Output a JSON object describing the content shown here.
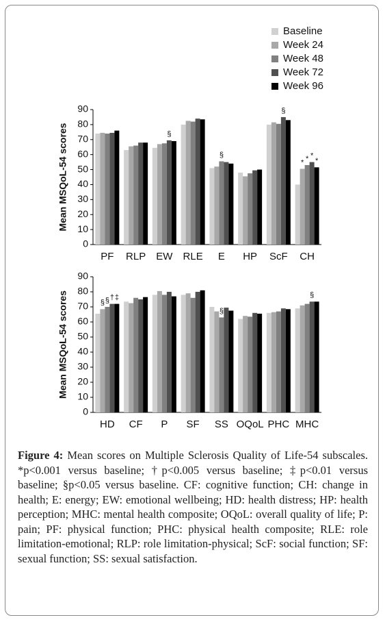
{
  "chart_data": [
    {
      "type": "bar",
      "ylabel": "Mean MSQoL-54 scores",
      "categories": [
        "PF",
        "RLP",
        "EW",
        "RLE",
        "E",
        "HP",
        "ScF",
        "CH"
      ],
      "series": [
        {
          "name": "Baseline",
          "color": "#d0d0d0",
          "values": [
            74,
            63,
            64.5,
            80,
            51,
            48,
            80,
            40
          ]
        },
        {
          "name": "Week 24",
          "color": "#a8a8a8",
          "values": [
            74.5,
            65.5,
            67,
            82.5,
            52,
            45.5,
            81.5,
            50.5
          ]
        },
        {
          "name": "Week 48",
          "color": "#808080",
          "values": [
            74,
            66,
            67.5,
            82,
            55.5,
            47.5,
            80.5,
            53
          ]
        },
        {
          "name": "Week 72",
          "color": "#505050",
          "values": [
            74.5,
            68,
            69.5,
            84,
            55,
            49.5,
            85,
            55
          ]
        },
        {
          "name": "Week 96",
          "color": "#000000",
          "values": [
            76,
            68,
            69,
            83.5,
            54,
            50,
            83,
            51.5
          ]
        }
      ],
      "annotations": [
        {
          "text": "§",
          "category": "EW",
          "series": "Week 72"
        },
        {
          "text": "§",
          "category": "E",
          "series": "Week 48"
        },
        {
          "text": "§",
          "category": "ScF",
          "series": "Week 72"
        },
        {
          "text": "*",
          "category": "CH",
          "series": "Week 24"
        },
        {
          "text": "*",
          "category": "CH",
          "series": "Week 48"
        },
        {
          "text": "*",
          "category": "CH",
          "series": "Week 72"
        },
        {
          "text": "*",
          "category": "CH",
          "series": "Week 96"
        }
      ],
      "ylim": [
        0,
        90
      ],
      "yticks": [
        0,
        10,
        20,
        30,
        40,
        50,
        60,
        70,
        80,
        90
      ],
      "legend": "upper right"
    },
    {
      "type": "bar",
      "ylabel": "Mean MSQoL-54 scores",
      "categories": [
        "HD",
        "CF",
        "P",
        "SF",
        "SS",
        "OQoL",
        "PHC",
        "MHC"
      ],
      "series": [
        {
          "color": "#d0d0d0",
          "values": [
            65.5,
            73.5,
            78,
            78,
            70,
            62,
            66,
            69
          ]
        },
        {
          "color": "#a8a8a8",
          "values": [
            68.5,
            72.5,
            80.5,
            79,
            67,
            64,
            66.5,
            71
          ]
        },
        {
          "color": "#808080",
          "values": [
            70,
            76,
            78,
            76,
            63,
            63.5,
            67,
            72
          ]
        },
        {
          "color": "#505050",
          "values": [
            72,
            75,
            80,
            80,
            69.5,
            66,
            69,
            73.5
          ]
        },
        {
          "color": "#000000",
          "values": [
            72,
            76.5,
            77,
            81,
            67.5,
            65.5,
            68.5,
            73.5
          ]
        }
      ],
      "annotations": [
        {
          "text": "§",
          "category": "HD",
          "series_index": 1
        },
        {
          "text": "§",
          "category": "HD",
          "series_index": 2
        },
        {
          "text": "†",
          "category": "HD",
          "series_index": 3
        },
        {
          "text": "‡",
          "category": "HD",
          "series_index": 4
        },
        {
          "text": "§",
          "category": "SS",
          "series_index": 2
        },
        {
          "text": "§",
          "category": "MHC",
          "series_index": 3
        }
      ],
      "ylim": [
        0,
        90
      ],
      "yticks": [
        0,
        10,
        20,
        30,
        40,
        50,
        60,
        70,
        80,
        90
      ]
    }
  ],
  "caption": {
    "label": "Figure 4:",
    "text": "Mean scores on Multiple Sclerosis Quality of Life-54 subscales. *p<0.001 versus baseline; †p<0.005 versus baseline; ‡p<0.01 versus baseline; §p<0.05 versus baseline. CF: cognitive function; CH: change in health; E: energy; EW: emotional wellbeing; HD: health distress; HP: health perception; MHC: mental health composite; OQoL: overall quality of life; P: pain; PF: physical function; PHC: physical health composite; RLE: role limitation-emotional; RLP: role limitation-physical; ScF: social function; SF: sexual function; SS: sexual satisfaction."
  }
}
